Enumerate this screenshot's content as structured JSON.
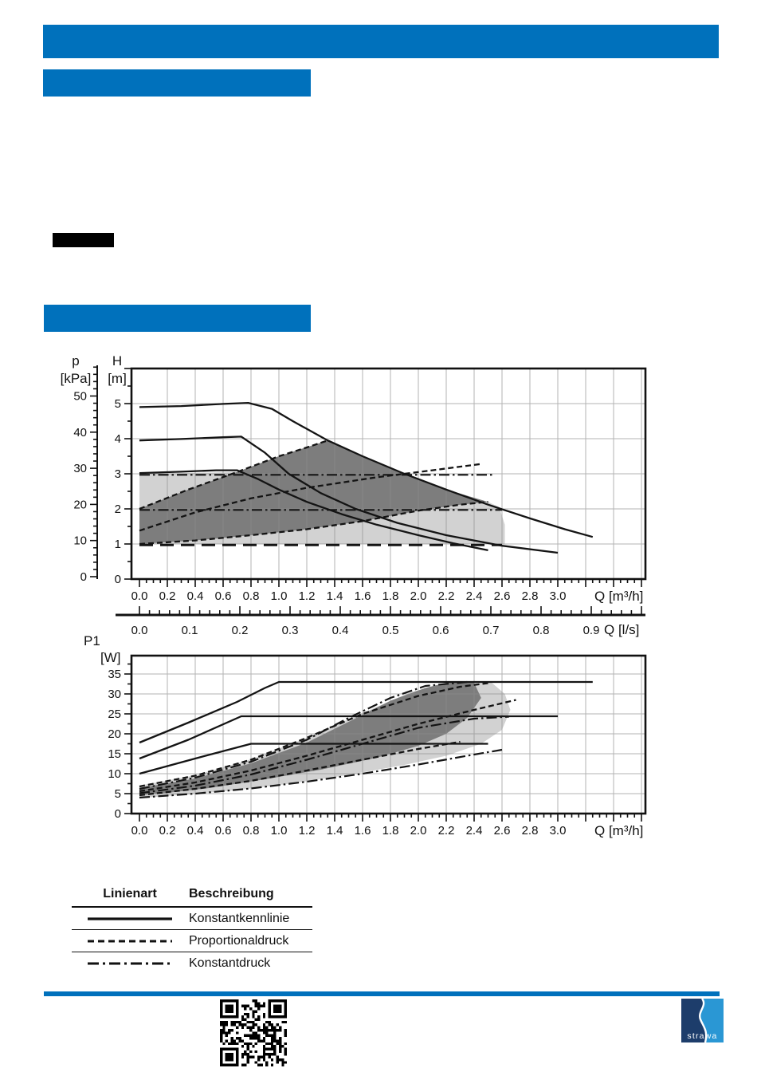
{
  "colors": {
    "accent_blue": "#0071bc",
    "black_bar": "#000000",
    "grid": "#8c8c8c",
    "region_light": "#d2d2d2",
    "region_dark": "#7d7d7d",
    "curve": "#141414",
    "logo_dark_blue": "#1d3d6b",
    "logo_light_blue": "#2a97d4"
  },
  "chart_data": [
    {
      "id": "hq-curve",
      "type": "line",
      "title": "",
      "x_axis": {
        "label": "Q [m³/h]",
        "min": 0,
        "max": 3.6,
        "major": 0.2,
        "minor": 0.05,
        "tick_labels": [
          "0.0",
          "0.2",
          "0.4",
          "0.6",
          "0.8",
          "1.0",
          "1.2",
          "1.4",
          "1.6",
          "1.8",
          "2.0",
          "2.2",
          "2.4",
          "2.6",
          "2.8",
          "3.0"
        ]
      },
      "y_axis": {
        "label": "H",
        "unit": "[m]",
        "min": 0,
        "max": 6,
        "major": 1,
        "minor": 0.5,
        "tick_labels": [
          "0",
          "1",
          "2",
          "3",
          "4",
          "5"
        ]
      },
      "y_axis_secondary": {
        "label": "p",
        "unit": "[kPa]",
        "min": 0,
        "max": 56,
        "major": 10,
        "minor": 2,
        "tick_labels": [
          "0",
          "10",
          "20",
          "30",
          "40",
          "50"
        ]
      },
      "grid": "on",
      "regions": {
        "light": [
          [
            0,
            1.0
          ],
          [
            0,
            3.0
          ],
          [
            0.7,
            3.05
          ],
          [
            1.0,
            3.5
          ],
          [
            1.35,
            3.95
          ],
          [
            1.6,
            3.5
          ],
          [
            1.9,
            3.0
          ],
          [
            2.2,
            2.55
          ],
          [
            2.5,
            2.2
          ],
          [
            2.58,
            2.05
          ],
          [
            2.62,
            1.55
          ],
          [
            2.62,
            1.0
          ]
        ],
        "dark": [
          [
            0,
            1.0
          ],
          [
            0,
            2.0
          ],
          [
            0.35,
            2.55
          ],
          [
            0.7,
            3.05
          ],
          [
            1.0,
            3.5
          ],
          [
            1.35,
            3.95
          ],
          [
            1.6,
            3.5
          ],
          [
            1.9,
            3.0
          ],
          [
            2.2,
            2.55
          ],
          [
            2.5,
            2.2
          ],
          [
            2.3,
            2.12
          ],
          [
            2.0,
            1.95
          ],
          [
            1.6,
            1.65
          ],
          [
            1.2,
            1.42
          ],
          [
            0.8,
            1.25
          ],
          [
            0.4,
            1.1
          ]
        ]
      },
      "series": [
        {
          "name": "kennlinie-stufe-3",
          "style": "solid",
          "points": [
            [
              0,
              4.9
            ],
            [
              0.3,
              4.93
            ],
            [
              0.6,
              4.99
            ],
            [
              0.78,
              5.02
            ],
            [
              0.95,
              4.85
            ],
            [
              1.1,
              4.5
            ],
            [
              1.35,
              3.95
            ],
            [
              1.6,
              3.5
            ],
            [
              1.9,
              3.0
            ],
            [
              2.2,
              2.55
            ],
            [
              2.5,
              2.12
            ],
            [
              2.8,
              1.73
            ],
            [
              3.05,
              1.42
            ],
            [
              3.25,
              1.2
            ]
          ]
        },
        {
          "name": "kennlinie-stufe-2",
          "style": "solid",
          "points": [
            [
              0,
              3.95
            ],
            [
              0.3,
              3.99
            ],
            [
              0.6,
              4.04
            ],
            [
              0.73,
              4.06
            ],
            [
              0.9,
              3.6
            ],
            [
              1.07,
              3.0
            ],
            [
              1.3,
              2.45
            ],
            [
              1.55,
              2.0
            ],
            [
              1.85,
              1.6
            ],
            [
              2.2,
              1.25
            ],
            [
              2.6,
              0.95
            ],
            [
              3.0,
              0.75
            ]
          ]
        },
        {
          "name": "kennlinie-stufe-1",
          "style": "solid",
          "points": [
            [
              0,
              3.02
            ],
            [
              0.3,
              3.06
            ],
            [
              0.55,
              3.1
            ],
            [
              0.7,
              3.1
            ],
            [
              0.85,
              2.85
            ],
            [
              1.0,
              2.55
            ],
            [
              1.2,
              2.2
            ],
            [
              1.45,
              1.85
            ],
            [
              1.7,
              1.55
            ],
            [
              2.0,
              1.25
            ],
            [
              2.25,
              1.02
            ],
            [
              2.5,
              0.82
            ]
          ]
        },
        {
          "name": "konstantdruck-3m",
          "style": "dashdot",
          "points": [
            [
              0,
              2.97
            ],
            [
              2.55,
              2.97
            ]
          ]
        },
        {
          "name": "konstantdruck-2m",
          "style": "dashdot",
          "points": [
            [
              0,
              1.97
            ],
            [
              2.6,
              1.97
            ]
          ]
        },
        {
          "name": "konstantdruck-min-1m",
          "style": "longdash",
          "points": [
            [
              0,
              0.97
            ],
            [
              2.6,
              0.97
            ]
          ]
        },
        {
          "name": "proportionaldruck-max",
          "style": "dashed",
          "points": [
            [
              0,
              2.0
            ],
            [
              0.35,
              2.55
            ],
            [
              0.7,
              3.05
            ],
            [
              1.0,
              3.5
            ],
            [
              1.2,
              3.75
            ],
            [
              1.35,
              3.95
            ]
          ]
        },
        {
          "name": "proportionaldruck-mittel",
          "style": "dashed",
          "points": [
            [
              0,
              1.38
            ],
            [
              0.4,
              1.9
            ],
            [
              0.8,
              2.3
            ],
            [
              1.2,
              2.6
            ],
            [
              1.7,
              2.9
            ],
            [
              2.1,
              3.1
            ],
            [
              2.45,
              3.28
            ]
          ]
        },
        {
          "name": "proportionaldruck-min",
          "style": "dashed",
          "points": [
            [
              0,
              1.0
            ],
            [
              0.4,
              1.1
            ],
            [
              0.8,
              1.25
            ],
            [
              1.2,
              1.42
            ],
            [
              1.6,
              1.65
            ],
            [
              2.0,
              1.95
            ],
            [
              2.3,
              2.12
            ],
            [
              2.5,
              2.2
            ]
          ]
        }
      ]
    },
    {
      "id": "ls-scale",
      "type": "axis",
      "label": "Q [l/s]",
      "major": 0.1,
      "minor": 0.02,
      "m3h_per_ls": 3.6,
      "tick_labels": [
        "0.0",
        "0.1",
        "0.2",
        "0.3",
        "0.4",
        "0.5",
        "0.6",
        "0.7",
        "0.8",
        "0.9"
      ]
    },
    {
      "id": "p1q-curve",
      "type": "line",
      "title": "",
      "x_axis": {
        "label": "Q [m³/h]",
        "min": 0,
        "max": 3.6,
        "major": 0.2,
        "minor": 0.05,
        "tick_labels": [
          "0.0",
          "0.2",
          "0.4",
          "0.6",
          "0.8",
          "1.0",
          "1.2",
          "1.4",
          "1.6",
          "1.8",
          "2.0",
          "2.2",
          "2.4",
          "2.6",
          "2.8",
          "3.0"
        ]
      },
      "y_axis": {
        "label": "P1",
        "unit": "[W]",
        "min": 0,
        "max": 39.5,
        "major": 5,
        "minor": 2.5,
        "tick_labels": [
          "0",
          "5",
          "10",
          "15",
          "20",
          "25",
          "30",
          "35"
        ]
      },
      "grid": "on",
      "regions": {
        "light": [
          [
            0,
            3.9
          ],
          [
            0,
            7.0
          ],
          [
            0.4,
            9.6
          ],
          [
            0.8,
            13.6
          ],
          [
            1.2,
            19
          ],
          [
            1.6,
            25.2
          ],
          [
            1.95,
            30.5
          ],
          [
            2.2,
            32.5
          ],
          [
            2.52,
            33
          ],
          [
            2.62,
            30
          ],
          [
            2.66,
            26
          ],
          [
            2.6,
            21
          ],
          [
            2.45,
            17.5
          ],
          [
            2.2,
            14.5
          ],
          [
            1.9,
            12.2
          ],
          [
            1.5,
            9.7
          ],
          [
            1.1,
            7.6
          ],
          [
            0.7,
            5.9
          ],
          [
            0.35,
            4.8
          ]
        ],
        "dark": [
          [
            0,
            4.6
          ],
          [
            0,
            6.4
          ],
          [
            0.4,
            8.8
          ],
          [
            0.8,
            12.6
          ],
          [
            1.2,
            17.8
          ],
          [
            1.5,
            23
          ],
          [
            1.8,
            28.3
          ],
          [
            2.05,
            31.5
          ],
          [
            2.2,
            32.8
          ],
          [
            2.4,
            32.8
          ],
          [
            2.45,
            29
          ],
          [
            2.35,
            24
          ],
          [
            2.2,
            20
          ],
          [
            2.0,
            17
          ],
          [
            1.7,
            14
          ],
          [
            1.3,
            11
          ],
          [
            0.9,
            8.6
          ],
          [
            0.5,
            6.4
          ],
          [
            0.2,
            5.2
          ]
        ]
      },
      "series": [
        {
          "name": "p1-stufe-3",
          "style": "solid",
          "points": [
            [
              0,
              17.8
            ],
            [
              0.35,
              22.8
            ],
            [
              0.7,
              28
            ],
            [
              0.9,
              31.5
            ],
            [
              1.0,
              33
            ],
            [
              3.25,
              33
            ]
          ]
        },
        {
          "name": "p1-stufe-2",
          "style": "solid",
          "points": [
            [
              0,
              13.8
            ],
            [
              0.35,
              18.5
            ],
            [
              0.73,
              24.4
            ],
            [
              3.0,
              24.4
            ]
          ]
        },
        {
          "name": "p1-stufe-1",
          "style": "solid",
          "points": [
            [
              0,
              10
            ],
            [
              0.4,
              13.8
            ],
            [
              0.8,
              17.5
            ],
            [
              2.5,
              17.5
            ]
          ]
        },
        {
          "name": "p1-proportionaldruck-max",
          "style": "dashed",
          "points": [
            [
              0,
              6.8
            ],
            [
              0.4,
              9.5
            ],
            [
              0.8,
              13.5
            ],
            [
              1.2,
              19
            ],
            [
              1.6,
              25
            ],
            [
              2.0,
              29.5
            ],
            [
              2.3,
              31.8
            ],
            [
              2.52,
              32.8
            ]
          ]
        },
        {
          "name": "p1-proportionaldruck-mittel",
          "style": "dashed",
          "points": [
            [
              0,
              5.6
            ],
            [
              0.4,
              7.8
            ],
            [
              0.8,
              10.8
            ],
            [
              1.2,
              14.5
            ],
            [
              1.6,
              18.5
            ],
            [
              2.0,
              22.5
            ],
            [
              2.4,
              26
            ],
            [
              2.7,
              28.5
            ]
          ]
        },
        {
          "name": "p1-proportionaldruck-min",
          "style": "dashed",
          "points": [
            [
              0,
              4.6
            ],
            [
              0.4,
              6.2
            ],
            [
              0.8,
              8.2
            ],
            [
              1.2,
              10.8
            ],
            [
              1.6,
              13.5
            ],
            [
              2.0,
              16.2
            ],
            [
              2.3,
              18
            ]
          ]
        },
        {
          "name": "p1-konstantdruck-max",
          "style": "dashdot",
          "points": [
            [
              0,
              6.2
            ],
            [
              0.4,
              9
            ],
            [
              0.8,
              13
            ],
            [
              1.2,
              18.5
            ],
            [
              1.5,
              24
            ],
            [
              1.8,
              29
            ],
            [
              2.05,
              32
            ],
            [
              2.35,
              33
            ]
          ]
        },
        {
          "name": "p1-konstantdruck-mittel",
          "style": "dashdot",
          "points": [
            [
              0,
              5.1
            ],
            [
              0.4,
              7
            ],
            [
              0.8,
              9.8
            ],
            [
              1.2,
              13.5
            ],
            [
              1.6,
              17.5
            ],
            [
              2.0,
              21.5
            ],
            [
              2.4,
              23.8
            ],
            [
              2.65,
              24.3
            ]
          ]
        },
        {
          "name": "p1-konstantdruck-min",
          "style": "dashdot",
          "points": [
            [
              0,
              4.0
            ],
            [
              0.4,
              5.0
            ],
            [
              0.8,
              6.3
            ],
            [
              1.2,
              8.0
            ],
            [
              1.6,
              10
            ],
            [
              2.0,
              12.3
            ],
            [
              2.4,
              14.8
            ],
            [
              2.6,
              16
            ]
          ]
        }
      ]
    }
  ],
  "legend_table": {
    "headers": [
      "Linienart",
      "Beschreibung"
    ],
    "rows": [
      {
        "style": "solid",
        "label": "Konstantkennlinie"
      },
      {
        "style": "dashed",
        "label": "Proportionaldruck"
      },
      {
        "style": "dashdot",
        "label": "Konstantdruck"
      }
    ]
  },
  "footer": {
    "logo_text": "strawa"
  }
}
